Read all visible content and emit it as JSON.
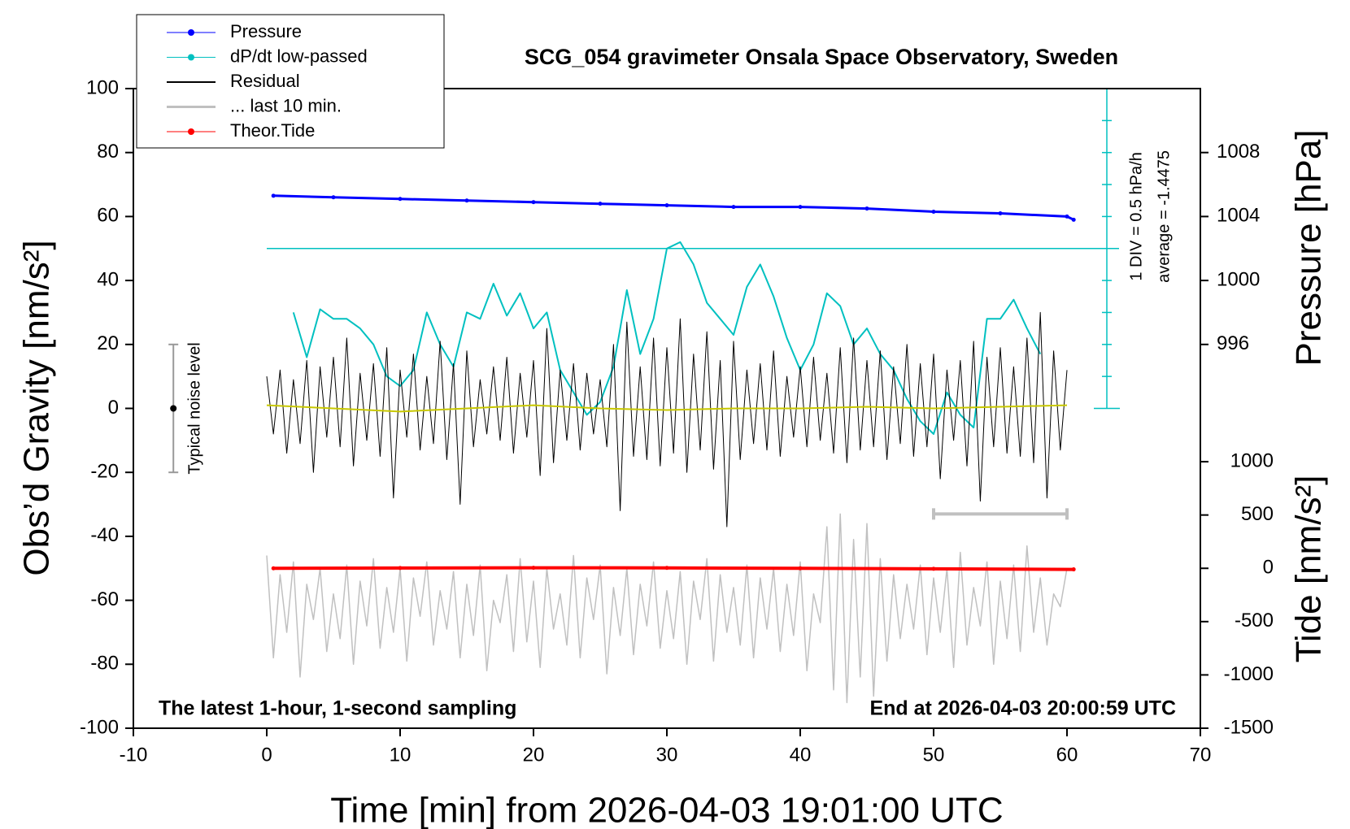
{
  "chart_data": {
    "type": "line",
    "title": "SCG_054 gravimeter Onsala Space Observatory, Sweden",
    "xlabel": "Time [min] from 2026-04-03 19:01:00 UTC",
    "ylabel": "Obs’d Gravity [nm/s²]",
    "y2label": "Pressure [hPa]",
    "y3label": "Tide [nm/s²]",
    "xlim": [
      -10,
      70
    ],
    "xticks": [
      -10,
      0,
      10,
      20,
      30,
      40,
      50,
      60,
      70
    ],
    "ylim": [
      -100,
      100
    ],
    "yticks": [
      -100,
      -80,
      -60,
      -40,
      -20,
      0,
      20,
      40,
      60,
      80,
      100
    ],
    "y2lim": [
      992,
      1012
    ],
    "y2ticks": [
      996,
      1000,
      1004,
      1008
    ],
    "y3lim": [
      -1500,
      1000
    ],
    "y3ticks": [
      -1500,
      -1000,
      -500,
      0,
      500,
      1000
    ],
    "annotations": {
      "left_note": "The latest 1-hour, 1-second sampling",
      "right_note": "End at 2026-04-03 20:00:59 UTC",
      "dpdt_scale": "1 DIV = 0.5 hPa/h",
      "dpdt_reference": {
        "value": 50,
        "label": "average = -1.4475"
      },
      "noise_level": {
        "x": -7,
        "value": 0,
        "error": 20,
        "label": "Typical noise level"
      },
      "window": {
        "xlim": [
          50,
          60
        ],
        "value": -33
      }
    },
    "x": [
      0,
      0.5,
      1,
      1.5,
      2,
      2.5,
      3,
      3.5,
      4,
      4.5,
      5,
      5.5,
      6,
      6.5,
      7,
      7.5,
      8,
      8.5,
      9,
      9.5,
      10,
      10.5,
      11,
      11.5,
      12,
      12.5,
      13,
      13.5,
      14,
      14.5,
      15,
      15.5,
      16,
      16.5,
      17,
      17.5,
      18,
      18.5,
      19,
      19.5,
      20,
      20.5,
      21,
      21.5,
      22,
      22.5,
      23,
      23.5,
      24,
      24.5,
      25,
      25.5,
      26,
      26.5,
      27,
      27.5,
      28,
      28.5,
      29,
      29.5,
      30,
      30.5,
      31,
      31.5,
      32,
      32.5,
      33,
      33.5,
      34,
      34.5,
      35,
      35.5,
      36,
      36.5,
      37,
      37.5,
      38,
      38.5,
      39,
      39.5,
      40,
      40.5,
      41,
      41.5,
      42,
      42.5,
      43,
      43.5,
      44,
      44.5,
      45,
      45.5,
      46,
      46.5,
      47,
      47.5,
      48,
      48.5,
      49,
      49.5,
      50,
      50.5,
      51,
      51.5,
      52,
      52.5,
      53,
      53.5,
      54,
      54.5,
      55,
      55.5,
      56,
      56.5,
      57,
      57.5,
      58,
      58.5,
      59,
      59.5,
      60
    ],
    "series": [
      {
        "name": "Pressure",
        "color": "#0000ff",
        "axis": "y2",
        "marker": true,
        "x": [
          0.5,
          5,
          10,
          15,
          20,
          25,
          30,
          35,
          40,
          45,
          50,
          55,
          60,
          60.5
        ],
        "values": [
          1005.3,
          1005.2,
          1005.1,
          1005.0,
          1004.9,
          1004.8,
          1004.7,
          1004.6,
          1004.6,
          1004.5,
          1004.3,
          1004.2,
          1004.0,
          1003.8
        ]
      },
      {
        "name": "dP/dt low-passed",
        "color": "#00c0c0",
        "marker": true,
        "x": [
          2,
          3,
          4,
          5,
          6,
          7,
          8,
          9,
          10,
          11,
          12,
          13,
          14,
          15,
          16,
          17,
          18,
          19,
          20,
          21,
          22,
          23,
          24,
          25,
          26,
          27,
          28,
          29,
          30,
          31,
          32,
          33,
          34,
          35,
          36,
          37,
          38,
          39,
          40,
          41,
          42,
          43,
          44,
          45,
          46,
          47,
          48,
          49,
          50,
          51,
          52,
          53,
          54,
          55,
          56,
          57,
          58
        ],
        "values": [
          30,
          16,
          31,
          28,
          28,
          25,
          20,
          10,
          7,
          12,
          30,
          20,
          13,
          30,
          28,
          39,
          29,
          36,
          25,
          30,
          12,
          5,
          -2,
          2,
          13,
          37,
          17,
          28,
          50,
          52,
          45,
          33,
          28,
          23,
          38,
          45,
          35,
          22,
          12,
          20,
          36,
          32,
          20,
          25,
          17,
          12,
          3,
          -4,
          -8,
          5,
          -2,
          -6,
          28,
          28,
          34,
          25,
          17
        ]
      },
      {
        "name": "Residual",
        "color": "#000000",
        "values": [
          10,
          -8,
          12,
          -14,
          9,
          -11,
          15,
          -20,
          13,
          -9,
          16,
          -12,
          22,
          -18,
          11,
          -10,
          14,
          -15,
          19,
          -28,
          12,
          -9,
          17,
          -13,
          10,
          -11,
          21,
          -16,
          14,
          -30,
          18,
          -12,
          9,
          -8,
          13,
          -10,
          16,
          -14,
          11,
          -9,
          15,
          -21,
          25,
          -17,
          12,
          -10,
          14,
          -13,
          11,
          -8,
          9,
          -12,
          20,
          -32,
          27,
          -15,
          13,
          -16,
          22,
          -18,
          19,
          -14,
          28,
          -20,
          17,
          -13,
          24,
          -19,
          15,
          -37,
          21,
          -16,
          12,
          -11,
          14,
          -13,
          18,
          -15,
          10,
          -9,
          13,
          -12,
          16,
          -10,
          11,
          -14,
          19,
          -17,
          22,
          -13,
          15,
          -12,
          18,
          -16,
          13,
          -11,
          20,
          -15,
          14,
          -12,
          17,
          -22,
          12,
          -10,
          15,
          -18,
          21,
          -29,
          16,
          -12,
          19,
          -14,
          13,
          -15,
          22,
          -17,
          30,
          -28,
          18,
          -13,
          12
        ]
      },
      {
        "name": "... last 10 min.",
        "color": "#c0c0c0",
        "values": [
          -46,
          -78,
          -52,
          -70,
          -48,
          -84,
          -55,
          -66,
          -50,
          -76,
          -58,
          -72,
          -49,
          -80,
          -54,
          -68,
          -47,
          -75,
          -56,
          -70,
          -50,
          -79,
          -53,
          -65,
          -48,
          -74,
          -57,
          -69,
          -51,
          -78,
          -55,
          -71,
          -49,
          -82,
          -60,
          -67,
          -52,
          -76,
          -47,
          -73,
          -54,
          -81,
          -50,
          -69,
          -58,
          -74,
          -46,
          -78,
          -53,
          -66,
          -49,
          -83,
          -56,
          -71,
          -50,
          -77,
          -55,
          -68,
          -48,
          -75,
          -57,
          -72,
          -51,
          -80,
          -54,
          -66,
          -47,
          -79,
          -52,
          -70,
          -56,
          -74,
          -49,
          -78,
          -53,
          -69,
          -50,
          -76,
          -55,
          -71,
          -48,
          -82,
          -58,
          -67,
          -37,
          -88,
          -33,
          -92,
          -41,
          -84,
          -36,
          -90,
          -47,
          -79,
          -52,
          -72,
          -55,
          -69,
          -49,
          -77,
          -53,
          -70,
          -50,
          -81,
          -45,
          -74,
          -56,
          -68,
          -48,
          -80,
          -54,
          -72,
          -49,
          -76,
          -43,
          -70,
          -53,
          -74,
          -58,
          -62,
          -50
        ]
      },
      {
        "name": "Theor.Tide",
        "color": "#ff0000",
        "axis": "y3",
        "marker": true,
        "x": [
          0.5,
          10,
          20,
          30,
          40,
          50,
          60.5
        ],
        "values": [
          0,
          3,
          5,
          4,
          0,
          -5,
          -10
        ]
      },
      {
        "color": "#c8c800",
        "x": [
          0,
          5,
          10,
          15,
          20,
          25,
          30,
          35,
          40,
          45,
          50,
          55,
          60
        ],
        "values": [
          1,
          0,
          -1,
          0,
          1,
          0,
          -0.5,
          0,
          0,
          0.5,
          0,
          0.5,
          1
        ]
      }
    ]
  }
}
